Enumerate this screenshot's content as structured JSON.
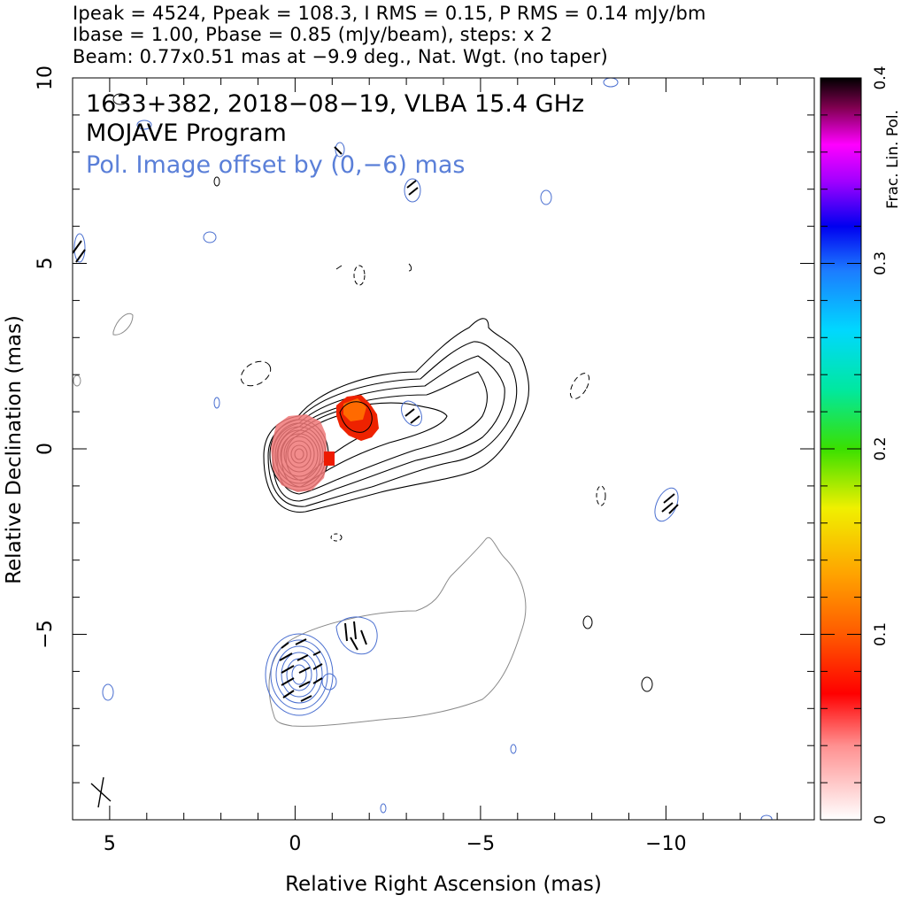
{
  "header": {
    "line1": "Ipeak = 4524, Ppeak = 108.3, I RMS = 0.15, P RMS = 0.14 mJy/bm",
    "line2": "Ibase = 1.00, Pbase = 0.85 (mJy/beam), steps: x 2",
    "line3": "Beam: 0.77x0.51 mas at −9.9 deg., Nat. Wgt. (no taper)"
  },
  "annotations": {
    "source": "1633+382, 2018−08−19, VLBA 15.4 GHz",
    "program": "MOJAVE Program",
    "offset_note": "Pol. Image offset by (0,−6) mas"
  },
  "chart_data": {
    "type": "contour",
    "xlabel": "Relative Right Ascension (mas)",
    "ylabel": "Relative Declination (mas)",
    "xlim": [
      6,
      -14
    ],
    "ylim": [
      -10,
      10
    ],
    "x_ticks": [
      5,
      0,
      -5,
      -10
    ],
    "x_tick_labels": [
      "5",
      "0",
      "−5",
      "−10"
    ],
    "y_ticks": [
      -5,
      0,
      5,
      10
    ],
    "y_tick_labels": [
      "−5",
      "0",
      "5",
      "10"
    ],
    "colorbar": {
      "label": "Frac. Lin. Pol.",
      "range": [
        0,
        0.4
      ],
      "ticks": [
        0,
        0.1,
        0.2,
        0.3,
        0.4
      ],
      "tick_labels": [
        "0",
        "0.1",
        "0.2",
        "0.3",
        "0.4"
      ]
    },
    "core": {
      "ra": 0,
      "dec": 0,
      "contour_levels": 12
    },
    "jet_direction": "north-west",
    "polarized_regions": [
      {
        "ra": 0.0,
        "dec": 0.0,
        "frac_pol": 0.03
      },
      {
        "ra": -1.6,
        "dec": 1.1,
        "frac_pol": 0.08
      }
    ],
    "polarization_offset_mas": [
      0,
      -6
    ],
    "colors": {
      "total_intensity_contours": "#000000",
      "pol_contours": "#4a6fd0",
      "pol_outer_contour": "#8a8a8a",
      "offset_note_text": "#5a7fd8"
    }
  }
}
